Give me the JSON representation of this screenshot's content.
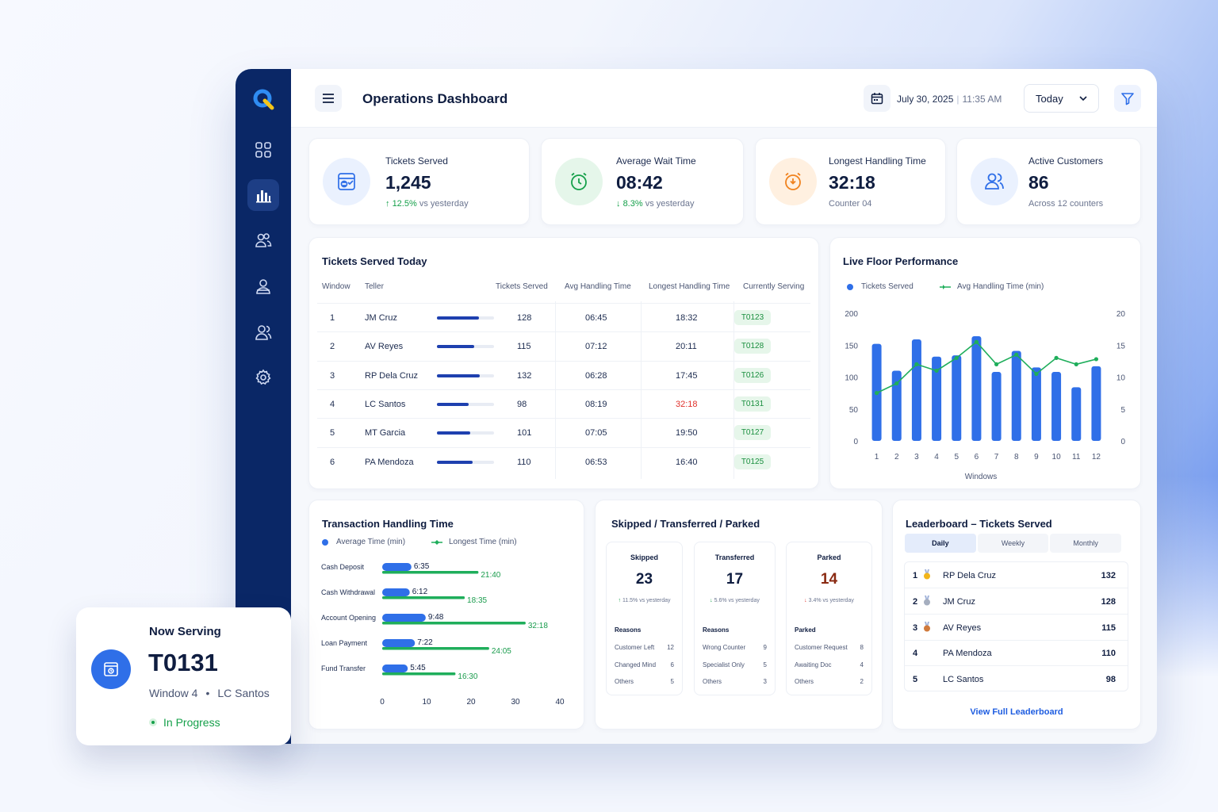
{
  "header": {
    "title": "Operations Dashboard",
    "date": "July 30, 2025",
    "time": "11:35 AM",
    "period_select": "Today"
  },
  "kpis": [
    {
      "label": "Tickets Served",
      "value": "1,245",
      "change": "12.5%",
      "change_suffix": " vs yesterday",
      "change_dir": "up",
      "icon": "ticket-icon",
      "color": "#2f6fe8"
    },
    {
      "label": "Average Wait Time",
      "value": "08:42",
      "change": "8.3%",
      "change_suffix": " vs yesterday",
      "change_dir": "down",
      "icon": "clock-icon",
      "color": "#15a04a"
    },
    {
      "label": "Longest Handling Time",
      "value": "32:18",
      "sub": "Counter 04",
      "icon": "alarm-icon",
      "color": "#f0821e"
    },
    {
      "label": "Active Customers",
      "value": "86",
      "sub": "Across 12 counters",
      "icon": "users-icon",
      "color": "#2f6fe8"
    }
  ],
  "tickets_table": {
    "title": "Tickets Served Today",
    "headers": [
      "Window",
      "Teller",
      "Tickets Served",
      "Avg Handling Time",
      "Longest Handling Time",
      "Currently Serving"
    ],
    "rows": [
      {
        "window": "1",
        "teller": "JM Cruz",
        "served": "128",
        "served_num": 128,
        "avg": "06:45",
        "longest": "18:32",
        "current": "T0123",
        "alert": false
      },
      {
        "window": "2",
        "teller": "AV Reyes",
        "served": "115",
        "served_num": 115,
        "avg": "07:12",
        "longest": "20:11",
        "current": "T0128",
        "alert": false
      },
      {
        "window": "3",
        "teller": "RP Dela Cruz",
        "served": "132",
        "served_num": 132,
        "avg": "06:28",
        "longest": "17:45",
        "current": "T0126",
        "alert": false
      },
      {
        "window": "4",
        "teller": "LC Santos",
        "served": "98",
        "served_num": 98,
        "avg": "08:19",
        "longest": "32:18",
        "current": "T0131",
        "alert": true
      },
      {
        "window": "5",
        "teller": "MT Garcia",
        "served": "101",
        "served_num": 101,
        "avg": "07:05",
        "longest": "19:50",
        "current": "T0127",
        "alert": false
      },
      {
        "window": "6",
        "teller": "PA Mendoza",
        "served": "110",
        "served_num": 110,
        "avg": "06:53",
        "longest": "16:40",
        "current": "T0125",
        "alert": false
      }
    ]
  },
  "live_floor": {
    "title": "Live Floor Performance",
    "legend_bar": "Tickets Served",
    "legend_line": "Avg Handling Time (min)",
    "xlabel": "Windows",
    "bar_color": "#2f6fe8",
    "line_color": "#1fae5b"
  },
  "transaction": {
    "title": "Transaction Handling Time",
    "legend_avg": "Average Time (min)",
    "legend_long": "Longest Time (min)"
  },
  "stp": {
    "title": "Skipped / Transferred / Parked",
    "cards": [
      {
        "title": "Skipped",
        "value": "23",
        "change": "11.5% vs yesterday",
        "arrow": "↑",
        "color": "#0f1d40",
        "arrow_color": "#15a04a",
        "reasons_title": "Reasons",
        "reasons": [
          {
            "label": "Customer Left",
            "value": "12"
          },
          {
            "label": "Changed Mind",
            "value": "6"
          },
          {
            "label": "Others",
            "value": "5"
          }
        ]
      },
      {
        "title": "Transferred",
        "value": "17",
        "change": "5.6% vs yesterday",
        "arrow": "↓",
        "color": "#0f1d40",
        "arrow_color": "#15a04a",
        "reasons_title": "Reasons",
        "reasons": [
          {
            "label": "Wrong Counter",
            "value": "9"
          },
          {
            "label": "Specialist Only",
            "value": "5"
          },
          {
            "label": "Others",
            "value": "3"
          }
        ]
      },
      {
        "title": "Parked",
        "value": "14",
        "change": "3.4% vs yesterday",
        "arrow": "↓",
        "color": "#8a2a12",
        "arrow_color": "#e0312b",
        "reasons_title": "Parked",
        "reasons": [
          {
            "label": "Customer Request",
            "value": "8"
          },
          {
            "label": "Awaiting Doc",
            "value": "4"
          },
          {
            "label": "Others",
            "value": "2"
          }
        ]
      }
    ]
  },
  "leaderboard": {
    "title": "Leaderboard – Tickets Served",
    "tabs": [
      "Daily",
      "Weekly",
      "Monthly"
    ],
    "active_tab": "Daily",
    "rows": [
      {
        "rank": "1",
        "name": "RP Dela Cruz",
        "value": "132",
        "medal": "gold"
      },
      {
        "rank": "2",
        "name": "JM Cruz",
        "value": "128",
        "medal": "silver"
      },
      {
        "rank": "3",
        "name": "AV Reyes",
        "value": "115",
        "medal": "bronze"
      },
      {
        "rank": "4",
        "name": "PA Mendoza",
        "value": "110",
        "medal": ""
      },
      {
        "rank": "5",
        "name": "LC Santos",
        "value": "98",
        "medal": ""
      }
    ],
    "link": "View Full Leaderboard"
  },
  "now_serving": {
    "label": "Now Serving",
    "ticket": "T0131",
    "window": "Window 4",
    "teller": "LC Santos",
    "status": "In Progress"
  },
  "chart_data": [
    {
      "type": "bar",
      "title": "Live Floor Performance",
      "xlabel": "Windows",
      "categories": [
        "1",
        "2",
        "3",
        "4",
        "5",
        "6",
        "7",
        "8",
        "9",
        "10",
        "11",
        "12"
      ],
      "ylim": [
        0,
        200
      ],
      "y2lim": [
        0,
        20
      ],
      "yticks": [
        0,
        50,
        100,
        150,
        200
      ],
      "y2ticks": [
        0,
        5,
        10,
        15,
        20
      ],
      "series": [
        {
          "name": "Tickets Served",
          "type": "bar",
          "values": [
            152,
            110,
            159,
            132,
            134,
            164,
            108,
            141,
            115,
            108,
            84,
            117
          ]
        },
        {
          "name": "Avg Handling Time (min)",
          "type": "line",
          "axis": "right",
          "values": [
            7.5,
            9,
            12,
            11,
            13,
            15.5,
            12,
            13.5,
            10.5,
            13,
            12,
            12.8
          ]
        }
      ],
      "legend": "top-left"
    },
    {
      "type": "bar",
      "orientation": "horizontal",
      "title": "Transaction Handling Time",
      "categories": [
        "Cash Deposit",
        "Cash Withdrawal",
        "Account Opening",
        "Loan Payment",
        "Fund Transfer"
      ],
      "xlim": [
        0,
        40
      ],
      "xticks": [
        0,
        10,
        20,
        30,
        40
      ],
      "series": [
        {
          "name": "Average Time (min)",
          "values": [
            6.58,
            6.2,
            9.8,
            7.37,
            5.75
          ],
          "labels": [
            "6:35",
            "6:12",
            "9:48",
            "7:22",
            "5:45"
          ]
        },
        {
          "name": "Longest Time (min)",
          "values": [
            21.67,
            18.58,
            32.3,
            24.08,
            16.5
          ],
          "labels": [
            "21:40",
            "18:35",
            "32:18",
            "24:05",
            "16:30"
          ]
        }
      ],
      "legend": "top-left"
    }
  ]
}
